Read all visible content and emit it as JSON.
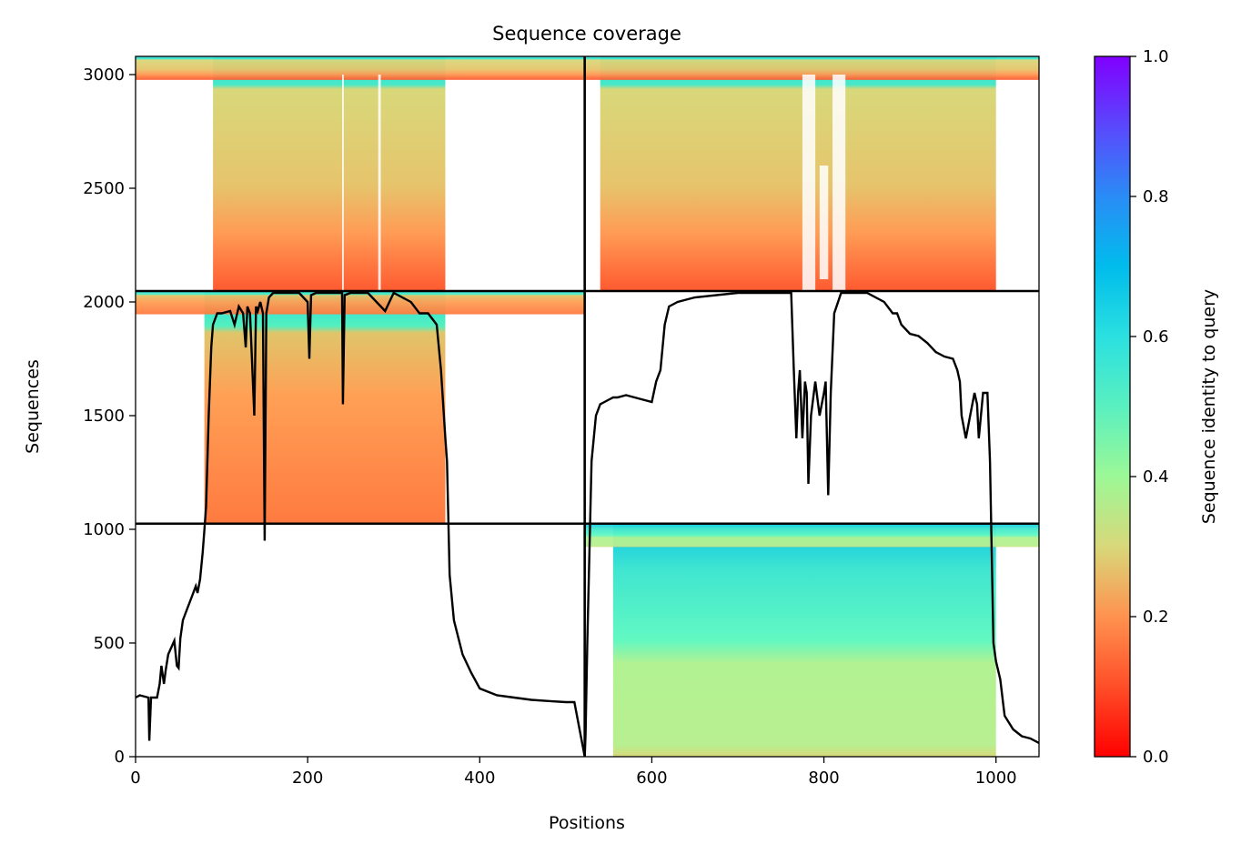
{
  "chart_data": {
    "type": "heatmap",
    "title": "Sequence coverage",
    "xlabel": "Positions",
    "ylabel": "Sequences",
    "xlim": [
      0,
      1050
    ],
    "ylim": [
      0,
      3080
    ],
    "x_ticks": [
      0,
      200,
      400,
      600,
      800,
      1000
    ],
    "y_ticks": [
      0,
      500,
      1000,
      1500,
      2000,
      2500,
      3000
    ],
    "colormap": "rainbow_r",
    "colorbar": {
      "label": "Sequence identity to query",
      "range": [
        0,
        1
      ],
      "ticks": [
        "0.0",
        "0.2",
        "0.4",
        "0.6",
        "0.8",
        "1.0"
      ]
    },
    "block_boundaries": {
      "x": [
        522
      ],
      "y": [
        1025,
        2048
      ]
    },
    "blocks": [
      {
        "x_range": [
          0,
          522
        ],
        "y_range": [
          2048,
          3080
        ],
        "identity_top": 0.65,
        "identity_bottom": 0.15,
        "coverage": [
          90,
          360
        ]
      },
      {
        "x_range": [
          522,
          1050
        ],
        "y_range": [
          2048,
          3080
        ],
        "identity_top": 0.65,
        "identity_bottom": 0.15,
        "coverage": [
          540,
          1000
        ]
      },
      {
        "x_range": [
          0,
          522
        ],
        "y_range": [
          1025,
          2048
        ],
        "identity_top": 0.65,
        "identity_bottom": 0.18,
        "coverage": [
          80,
          360
        ]
      },
      {
        "x_range": [
          522,
          1050
        ],
        "y_range": [
          0,
          1025
        ],
        "identity_top": 0.7,
        "identity_bottom": 0.35,
        "coverage": [
          555,
          1000
        ]
      }
    ],
    "coverage_line": {
      "x": [
        0,
        5,
        15,
        16,
        18,
        25,
        28,
        30,
        33,
        35,
        38,
        45,
        48,
        50,
        52,
        55,
        60,
        65,
        70,
        72,
        75,
        78,
        80,
        82,
        85,
        88,
        90,
        95,
        100,
        110,
        115,
        120,
        125,
        128,
        130,
        133,
        138,
        140,
        142,
        145,
        148,
        150,
        152,
        155,
        160,
        170,
        190,
        200,
        202,
        204,
        210,
        220,
        240,
        241,
        243,
        250,
        270,
        290,
        300,
        320,
        330,
        340,
        350,
        355,
        360,
        362,
        365,
        370,
        380,
        390,
        400,
        420,
        440,
        460,
        480,
        500,
        510,
        522,
        523,
        525,
        530,
        535,
        540,
        545,
        550,
        555,
        560,
        570,
        580,
        600,
        605,
        610,
        615,
        620,
        630,
        650,
        700,
        740,
        760,
        762,
        765,
        768,
        770,
        772,
        775,
        778,
        780,
        782,
        785,
        790,
        795,
        800,
        802,
        805,
        808,
        812,
        820,
        830,
        850,
        870,
        880,
        885,
        890,
        900,
        910,
        920,
        930,
        940,
        950,
        955,
        958,
        960,
        965,
        970,
        975,
        978,
        980,
        985,
        990,
        993,
        995,
        997,
        1000,
        1005,
        1010,
        1020,
        1030,
        1040,
        1050
      ],
      "y": [
        260,
        270,
        260,
        70,
        260,
        260,
        320,
        400,
        320,
        380,
        450,
        510,
        400,
        390,
        520,
        600,
        650,
        700,
        750,
        720,
        780,
        900,
        1000,
        1100,
        1500,
        1800,
        1900,
        1950,
        1950,
        1960,
        1900,
        1980,
        1950,
        1800,
        1980,
        1950,
        1500,
        1980,
        1960,
        2000,
        1950,
        950,
        1950,
        2020,
        2040,
        2040,
        2040,
        2000,
        1750,
        2030,
        2040,
        2040,
        2040,
        1550,
        2030,
        2040,
        2040,
        1960,
        2040,
        2000,
        1950,
        1950,
        1900,
        1700,
        1400,
        1300,
        800,
        600,
        450,
        370,
        300,
        270,
        260,
        250,
        245,
        240,
        240,
        0,
        100,
        500,
        1300,
        1500,
        1550,
        1560,
        1570,
        1580,
        1580,
        1590,
        1580,
        1560,
        1650,
        1700,
        1900,
        1980,
        2000,
        2020,
        2040,
        2040,
        2040,
        2040,
        1700,
        1400,
        1600,
        1700,
        1400,
        1650,
        1600,
        1200,
        1500,
        1650,
        1500,
        1600,
        1650,
        1150,
        1600,
        1950,
        2040,
        2040,
        2040,
        2000,
        1950,
        1950,
        1900,
        1860,
        1850,
        1820,
        1780,
        1760,
        1750,
        1700,
        1650,
        1500,
        1400,
        1500,
        1600,
        1550,
        1400,
        1600,
        1600,
        1300,
        900,
        500,
        420,
        340,
        180,
        120,
        90,
        80,
        60,
        30
      ]
    },
    "grid": false,
    "legend": "none"
  }
}
